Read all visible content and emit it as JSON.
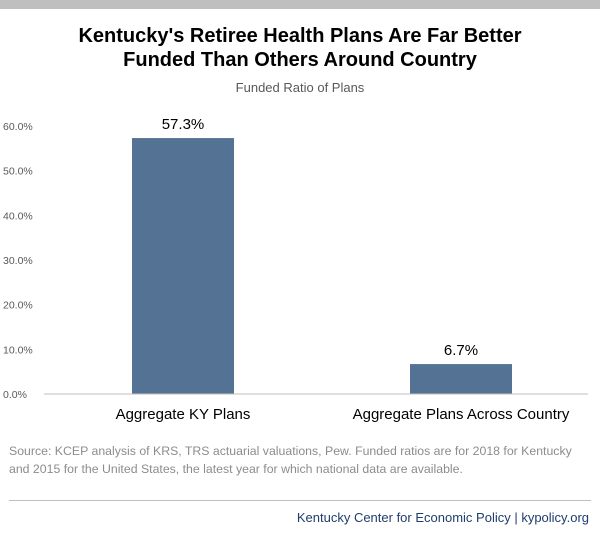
{
  "title_line1": "Kentucky's Retiree Health Plans Are Far Better",
  "title_line2": "Funded Than Others Around Country",
  "source_note": "Source: KCEP analysis of KRS, TRS actuarial valuations, Pew. Funded ratios are for 2018 for Kentucky and 2015 for the United States, the latest year for which national data are available.",
  "footer_credit": "Kentucky Center for Economic Policy | kypolicy.org",
  "colors": {
    "bar": "#547294",
    "top_bar": "#bfbfbf",
    "footer_text": "#1f3d6b"
  },
  "chart_data": {
    "type": "bar",
    "title": "Funded Ratio of Plans",
    "categories": [
      "Aggregate KY Plans",
      "Aggregate Plans Across Country"
    ],
    "values": [
      57.3,
      6.7
    ],
    "data_labels": [
      "57.3%",
      "6.7%"
    ],
    "ylim": [
      0,
      60
    ],
    "yticks": [
      0,
      10,
      20,
      30,
      40,
      50,
      60
    ],
    "ytick_labels": [
      "0.0%",
      "10.0%",
      "20.0%",
      "30.0%",
      "40.0%",
      "50.0%",
      "60.0%"
    ],
    "xlabel": "",
    "ylabel": "",
    "grid": false,
    "legend": false
  }
}
